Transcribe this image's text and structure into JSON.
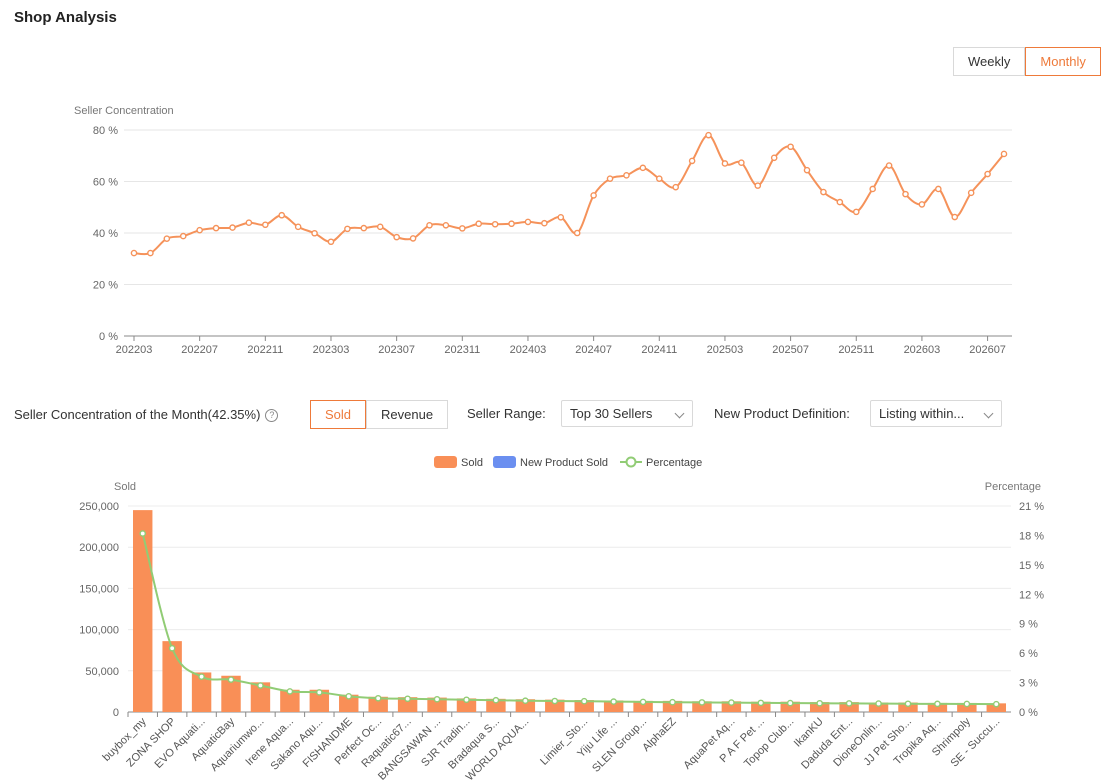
{
  "page": {
    "title": "Shop Analysis"
  },
  "period_toggle": {
    "weekly": "Weekly",
    "monthly": "Monthly",
    "active": "monthly"
  },
  "controls": {
    "concentration_label": "Seller Concentration of the Month(42.35%)",
    "metric_sold": "Sold",
    "metric_revenue": "Revenue",
    "active_metric": "sold",
    "seller_range_label": "Seller Range:",
    "seller_range_value": "Top 30 Sellers",
    "new_product_label": "New Product Definition:",
    "new_product_value": "Listing within..."
  },
  "colors": {
    "line": "#f5925a",
    "bar": "#f98f57",
    "new_bar": "#6b8ff0",
    "percentage": "#91cc75",
    "accent": "#ee7a3a"
  },
  "chart_data": [
    {
      "type": "line",
      "ylabel": "Seller Concentration",
      "ylim": [
        0,
        80
      ],
      "yticks": [
        "0 %",
        "20 %",
        "40 %",
        "60 %",
        "80 %"
      ],
      "ytick_values": [
        0,
        20,
        40,
        60,
        80
      ],
      "xtick_labels": [
        "202203",
        "202207",
        "202211",
        "202303",
        "202307",
        "202311",
        "202403",
        "202407",
        "202411",
        "202503",
        "202507",
        "202511",
        "202603",
        "202607"
      ],
      "x": [
        "202203",
        "202204",
        "202205",
        "202206",
        "202207",
        "202208",
        "202209",
        "202210",
        "202211",
        "202212",
        "202301",
        "202302",
        "202303",
        "202304",
        "202305",
        "202306",
        "202307",
        "202308",
        "202309",
        "202310",
        "202311",
        "202312",
        "202401",
        "202402",
        "202403",
        "202404",
        "202405",
        "202406",
        "202407",
        "202408",
        "202409",
        "202410",
        "202411",
        "202412",
        "202501",
        "202502",
        "202503",
        "202504",
        "202505",
        "202506",
        "202507",
        "202508",
        "202509",
        "202510",
        "202511",
        "202512",
        "202601",
        "202602",
        "202603",
        "202604",
        "202605",
        "202606",
        "202607",
        "202608"
      ],
      "values": [
        32.2,
        32.2,
        37.8,
        38.8,
        41.1,
        41.9,
        42.1,
        44.0,
        43.2,
        46.9,
        42.4,
        39.9,
        36.6,
        41.6,
        41.9,
        42.4,
        38.4,
        37.9,
        43.0,
        43.0,
        41.8,
        43.6,
        43.4,
        43.6,
        44.3,
        43.8,
        46.1,
        40.0,
        54.6,
        61.1,
        62.4,
        65.3,
        61.1,
        57.8,
        68.0,
        78.0,
        67.0,
        67.3,
        58.4,
        69.2,
        73.5,
        64.4,
        55.9,
        52.0,
        48.2,
        57.1,
        66.2,
        55.1,
        51.1,
        57.1,
        46.2,
        55.6,
        62.9,
        70.7
      ],
      "grid": true,
      "legend": "none"
    },
    {
      "type": "bar",
      "ylabel": "Sold",
      "y2label": "Percentage",
      "ylim": [
        0,
        250000
      ],
      "y2lim": [
        0,
        21
      ],
      "yticks": [
        "0",
        "50,000",
        "100,000",
        "150,000",
        "200,000",
        "250,000"
      ],
      "ytick_values": [
        0,
        50000,
        100000,
        150000,
        200000,
        250000
      ],
      "y2ticks": [
        "0 %",
        "3 %",
        "6 %",
        "9 %",
        "12 %",
        "15 %",
        "18 %",
        "21 %"
      ],
      "y2tick_values": [
        0,
        3,
        6,
        9,
        12,
        15,
        18,
        21
      ],
      "legend": "top-center",
      "legend_items": [
        "Sold",
        "New Product Sold",
        "Percentage"
      ],
      "categories": [
        "buybox_my",
        "ZONA SHOP",
        "EVO Aquati...",
        "AquaticBay",
        "Aquariumwo...",
        "Irene Aqua...",
        "Sakano Aqu...",
        "FISHANDME",
        "Perfect Oc...",
        "Raquatic67...",
        "BANGSAWAN ...",
        "SJR Tradin...",
        "Bradaqua S...",
        "WORLD AQUA...",
        "",
        "Limier_Sto...",
        "Yiju Life ...",
        "SLEN Group...",
        "AlphaEZ",
        "",
        "AquaPet Aq...",
        "P A F Pet ...",
        "Topop Club...",
        "IkanKU",
        "Daduda Ent...",
        "DioneOnlin...",
        "JJ Pet Sho...",
        "Tropika Aq...",
        "Shrimpoly",
        "SE - Succu..."
      ],
      "series": [
        {
          "name": "Sold",
          "values": [
            245000,
            86000,
            48000,
            44000,
            36000,
            27000,
            27000,
            21000,
            18500,
            18000,
            17500,
            16500,
            16000,
            15500,
            15000,
            14500,
            14000,
            13500,
            13500,
            13000,
            13000,
            12500,
            12500,
            12000,
            12000,
            11500,
            11500,
            11000,
            11000,
            10500
          ]
        },
        {
          "name": "New Product Sold",
          "values": [
            0,
            0,
            0,
            0,
            0,
            0,
            0,
            0,
            0,
            0,
            0,
            0,
            0,
            0,
            0,
            0,
            0,
            0,
            0,
            0,
            0,
            0,
            0,
            0,
            0,
            0,
            0,
            0,
            0,
            0
          ]
        },
        {
          "name": "Percentage",
          "values": [
            18.2,
            6.5,
            3.6,
            3.3,
            2.7,
            2.1,
            2.0,
            1.6,
            1.4,
            1.35,
            1.3,
            1.25,
            1.2,
            1.15,
            1.12,
            1.1,
            1.06,
            1.03,
            1.0,
            0.98,
            0.96,
            0.93,
            0.91,
            0.89,
            0.88,
            0.86,
            0.84,
            0.83,
            0.82,
            0.8
          ]
        }
      ]
    }
  ]
}
